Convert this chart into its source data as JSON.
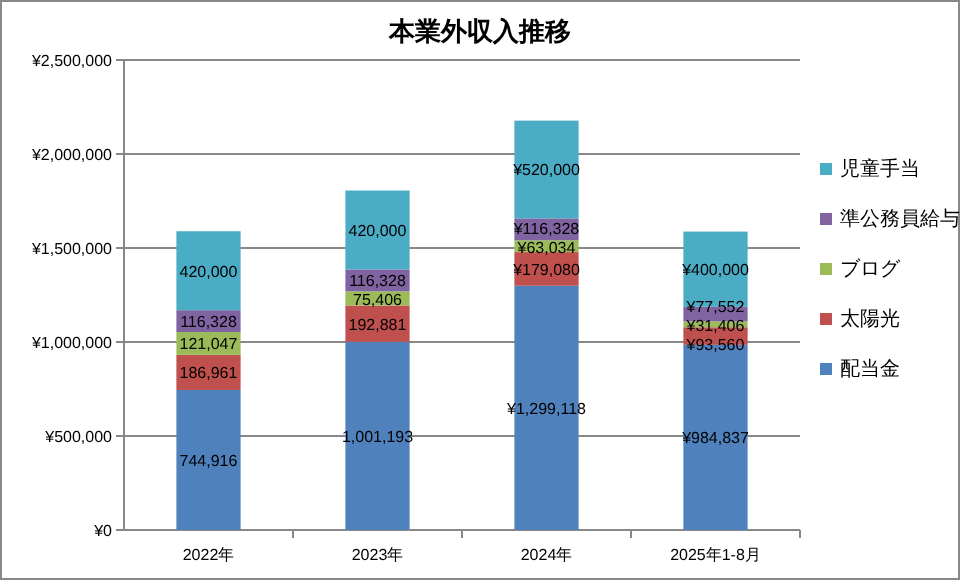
{
  "chart_data": {
    "type": "bar",
    "title": "本業外収入推移",
    "stacked": true,
    "categories": [
      "2022年",
      "2023年",
      "2024年",
      "2025年1-8月"
    ],
    "series": [
      {
        "name": "配当金",
        "color": "#4f81bd",
        "values": [
          744916,
          1001193,
          1299118,
          984837
        ],
        "value_labels": [
          "744,916",
          "1,001,193",
          "¥1,299,118",
          "¥984,837"
        ]
      },
      {
        "name": "太陽光",
        "color": "#c0504d",
        "values": [
          186961,
          192881,
          179080,
          93560
        ],
        "value_labels": [
          "186,961",
          "192,881",
          "¥179,080",
          "¥93,560"
        ]
      },
      {
        "name": "ブログ",
        "color": "#9bbb59",
        "values": [
          121047,
          75406,
          63034,
          31406
        ],
        "value_labels": [
          "121,047",
          "75,406",
          "¥63,034",
          "¥31,406"
        ]
      },
      {
        "name": "準公務員給与",
        "color": "#8064a2",
        "values": [
          116328,
          116328,
          116328,
          77552
        ],
        "value_labels": [
          "116,328",
          "116,328",
          "¥116,328",
          "¥77,552"
        ]
      },
      {
        "name": "児童手当",
        "color": "#4bacc6",
        "values": [
          420000,
          420000,
          520000,
          400000
        ],
        "value_labels": [
          "420,000",
          "420,000",
          "¥520,000",
          "¥400,000"
        ]
      }
    ],
    "ylim": [
      0,
      2500000
    ],
    "yticks": [
      {
        "value": 0,
        "label": "¥0"
      },
      {
        "value": 500000,
        "label": "¥500,000"
      },
      {
        "value": 1000000,
        "label": "¥1,000,000"
      },
      {
        "value": 1500000,
        "label": "¥1,500,000"
      },
      {
        "value": 2000000,
        "label": "¥2,000,000"
      },
      {
        "value": 2500000,
        "label": "¥2,500,000"
      }
    ],
    "grid": "y",
    "legend": "right"
  }
}
